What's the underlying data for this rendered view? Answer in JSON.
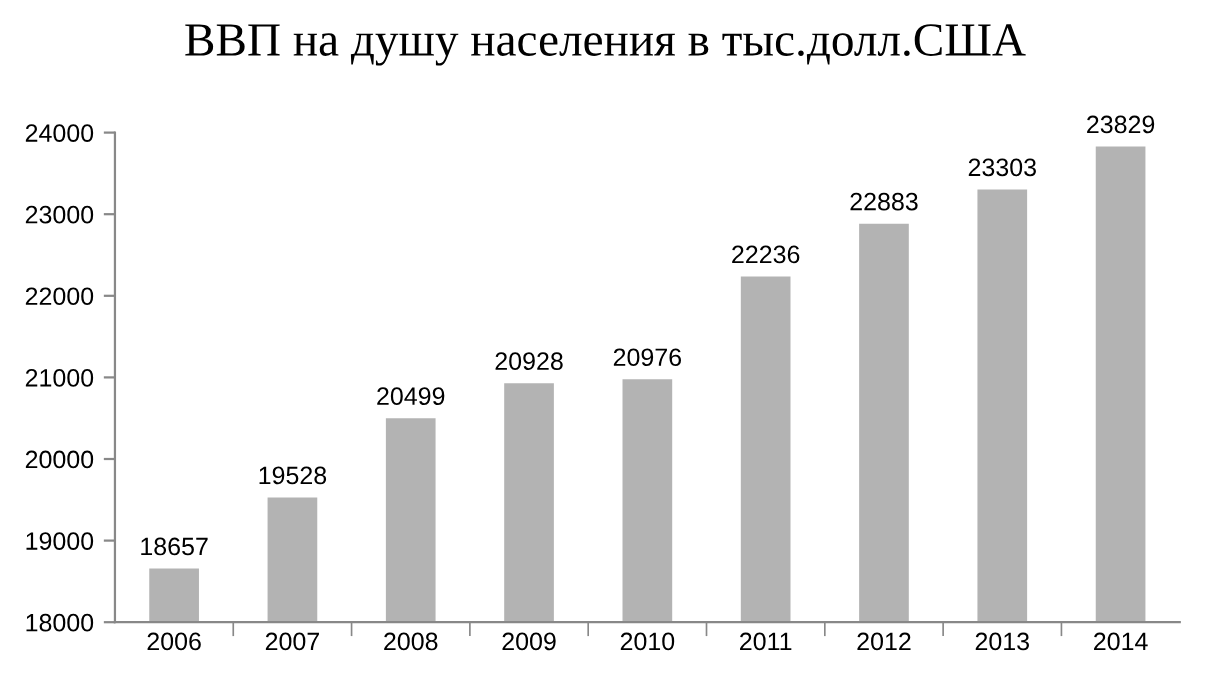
{
  "chart_data": {
    "type": "bar",
    "title": "ВВП на душу населения в тыс.долл.США",
    "categories": [
      "2006",
      "2007",
      "2008",
      "2009",
      "2010",
      "2011",
      "2012",
      "2013",
      "2014"
    ],
    "values": [
      18657,
      19528,
      20499,
      20928,
      20976,
      22236,
      22883,
      23303,
      23829
    ],
    "color": "#b3b3b3",
    "ylim": [
      18000,
      24000
    ],
    "yticks": [
      18000,
      19000,
      20000,
      21000,
      22000,
      23000,
      24000
    ],
    "grid": false,
    "data_labels": true
  }
}
